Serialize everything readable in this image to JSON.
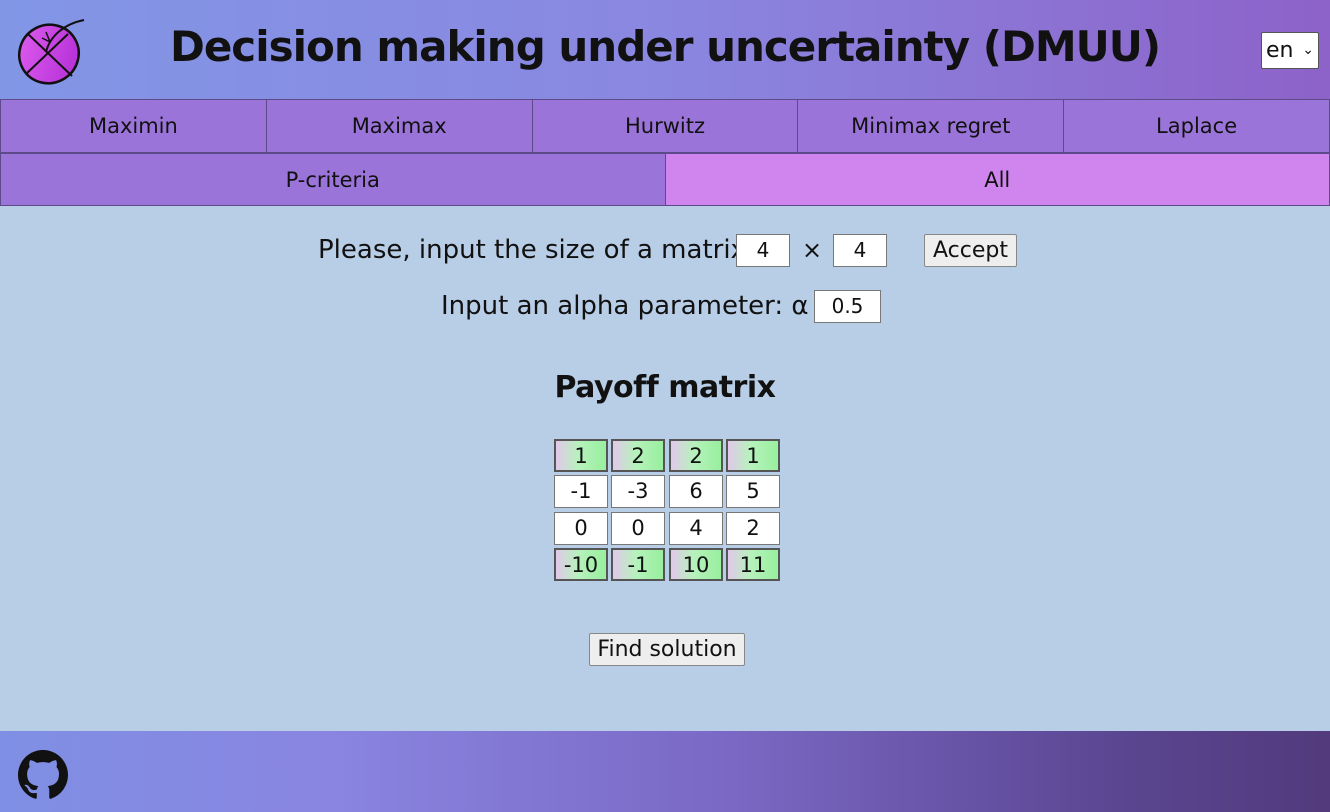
{
  "header": {
    "title": "Decision making under uncertainty (DMUU)",
    "logo_icon": "dmuu-logo-icon",
    "language": "en"
  },
  "tabs_row1": [
    {
      "label": "Maximin",
      "active": false
    },
    {
      "label": "Maximax",
      "active": false
    },
    {
      "label": "Hurwitz",
      "active": false
    },
    {
      "label": "Minimax regret",
      "active": false
    },
    {
      "label": "Laplace",
      "active": false
    }
  ],
  "tabs_row2": [
    {
      "label": "P-criteria",
      "active": false
    },
    {
      "label": "All",
      "active": true
    }
  ],
  "size_form": {
    "label": "Please, input the size of a matrix:",
    "rows": "4",
    "times": "×",
    "cols": "4",
    "accept_label": "Accept"
  },
  "alpha_form": {
    "label": "Input an alpha parameter: α =",
    "value": "0.5"
  },
  "matrix": {
    "title": "Payoff matrix",
    "rows": [
      {
        "highlighted": true,
        "cells": [
          "1",
          "2",
          "2",
          "1"
        ]
      },
      {
        "highlighted": false,
        "cells": [
          "-1",
          "-3",
          "6",
          "5"
        ]
      },
      {
        "highlighted": false,
        "cells": [
          "0",
          "0",
          "4",
          "2"
        ]
      },
      {
        "highlighted": true,
        "cells": [
          "-10",
          "-1",
          "10",
          "11"
        ]
      }
    ],
    "highlight_colors": [
      "#e2c8ea",
      "#98ef9e"
    ]
  },
  "find_solution_label": "Find solution",
  "footer": {
    "github_icon": "github-icon"
  },
  "colors": {
    "background": "#b8cde6",
    "tab": "#9b74d9",
    "tab_active": "#cf84ee"
  }
}
